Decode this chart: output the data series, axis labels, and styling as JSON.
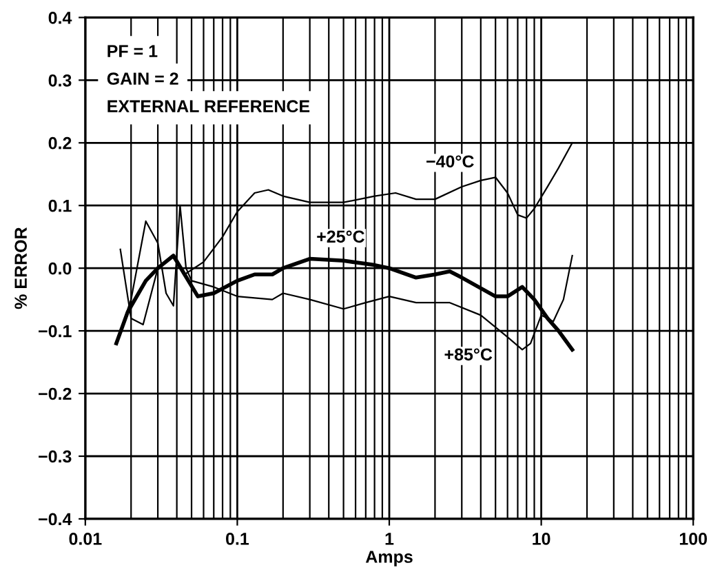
{
  "chart_data": {
    "type": "line",
    "xlabel": "Amps",
    "ylabel": "% ERROR",
    "log": "x",
    "grid": true,
    "legend": false,
    "marker": "none",
    "line_style": "solid",
    "xlim": [
      0.01,
      100
    ],
    "xticks": [
      0.01,
      0.1,
      1,
      10,
      100
    ],
    "ylim": [
      -0.4,
      0.4
    ],
    "yticks": [
      {
        "value": 0.4,
        "label": "0.4"
      },
      {
        "value": 0.3,
        "label": "0.3"
      },
      {
        "value": 0.2,
        "label": "0.2"
      },
      {
        "value": 0.1,
        "label": "0.1"
      },
      {
        "value": 0.0,
        "label": "0.0"
      },
      {
        "value": -0.1,
        "label": "−0.1"
      },
      {
        "value": -0.2,
        "label": "−0.2"
      },
      {
        "value": -0.3,
        "label": "−0.3"
      },
      {
        "value": -0.4,
        "label": "−0.4"
      }
    ],
    "annotations": [
      "PF = 1",
      "GAIN = 2",
      "EXTERNAL REFERENCE"
    ],
    "series": [
      {
        "name": "−40°C",
        "color": "#000000",
        "x": [
          0.017,
          0.02,
          0.024,
          0.03,
          0.037,
          0.045,
          0.06,
          0.08,
          0.1,
          0.13,
          0.16,
          0.2,
          0.3,
          0.5,
          0.8,
          1.1,
          1.5,
          2,
          3,
          4,
          5,
          6,
          7,
          8,
          9,
          11,
          13,
          16
        ],
        "values": [
          0.03,
          -0.08,
          -0.09,
          0.0,
          0.02,
          -0.01,
          0.01,
          0.05,
          0.09,
          0.12,
          0.125,
          0.115,
          0.105,
          0.105,
          0.115,
          0.12,
          0.11,
          0.11,
          0.13,
          0.14,
          0.145,
          0.12,
          0.085,
          0.08,
          0.095,
          0.13,
          0.16,
          0.2
        ]
      },
      {
        "name": "+25°C",
        "color": "#000000",
        "x": [
          0.016,
          0.019,
          0.025,
          0.03,
          0.038,
          0.045,
          0.055,
          0.07,
          0.1,
          0.13,
          0.17,
          0.2,
          0.3,
          0.5,
          0.8,
          1,
          1.5,
          2,
          2.5,
          3,
          5,
          6,
          7.5,
          9,
          11,
          13,
          16
        ],
        "values": [
          -0.12,
          -0.07,
          -0.02,
          0.0,
          0.02,
          -0.01,
          -0.045,
          -0.04,
          -0.02,
          -0.01,
          -0.01,
          0.0,
          0.015,
          0.012,
          0.005,
          0.0,
          -0.015,
          -0.01,
          -0.005,
          -0.015,
          -0.045,
          -0.045,
          -0.03,
          -0.05,
          -0.08,
          -0.1,
          -0.13
        ]
      },
      {
        "name": "+85°C",
        "color": "#000000",
        "x": [
          0.017,
          0.02,
          0.025,
          0.03,
          0.034,
          0.038,
          0.042,
          0.046,
          0.05,
          0.07,
          0.1,
          0.17,
          0.2,
          0.3,
          0.5,
          0.7,
          1,
          1.5,
          2.5,
          4,
          6,
          7.5,
          8.5,
          10,
          12,
          14,
          16
        ],
        "values": [
          -0.1,
          -0.05,
          0.075,
          0.04,
          -0.04,
          -0.06,
          0.1,
          0.0,
          -0.02,
          -0.03,
          -0.045,
          -0.05,
          -0.04,
          -0.05,
          -0.065,
          -0.055,
          -0.045,
          -0.055,
          -0.055,
          -0.075,
          -0.11,
          -0.13,
          -0.12,
          -0.075,
          -0.085,
          -0.05,
          0.02
        ]
      }
    ]
  }
}
